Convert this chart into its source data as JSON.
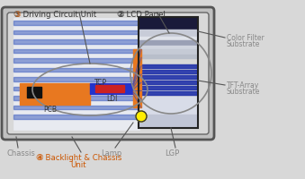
{
  "bg_color": "#d8d8d8",
  "chassis_outer_color": "#888888",
  "chassis_inner_color": "#c8c8c8",
  "chassis_fill": "#e0e0e0",
  "lgp_color": "#e8e8f0",
  "blue_stripe_color": "#3355bb",
  "lcd_top_dark": "#1a1a3a",
  "lcd_gray1": "#b0b8c8",
  "lcd_gray2": "#d0d5df",
  "lcd_gray3": "#8898b0",
  "lcd_blue_stripe": "#2233aa",
  "orange_color": "#e87820",
  "red_color": "#cc2222",
  "yellow_color": "#ffee00",
  "blue_connector": "#2233cc",
  "black": "#111111",
  "gray_text": "#888888",
  "dark_text": "#333333",
  "orange_text": "#cc5500",
  "ellipse_color": "#888888",
  "label_driving": "③ Driving Circuit Unit",
  "label_lcd": "② LCD Panel",
  "label_backlight": "④ Backlight & Chassis",
  "label_backlight2": "Unit",
  "label_chassis": "Chassis",
  "label_lamp": "Lamp",
  "label_lgp": "LGP",
  "label_color_filter": "Color Filter",
  "label_color_filter2": "Substrate",
  "label_tft": "TFT-Array",
  "label_tft2": "Substrate",
  "label_tcp": "TCP",
  "label_pcb": "PCB",
  "label_ldi": "LDI",
  "figsize": [
    3.39,
    2.0
  ],
  "dpi": 100
}
